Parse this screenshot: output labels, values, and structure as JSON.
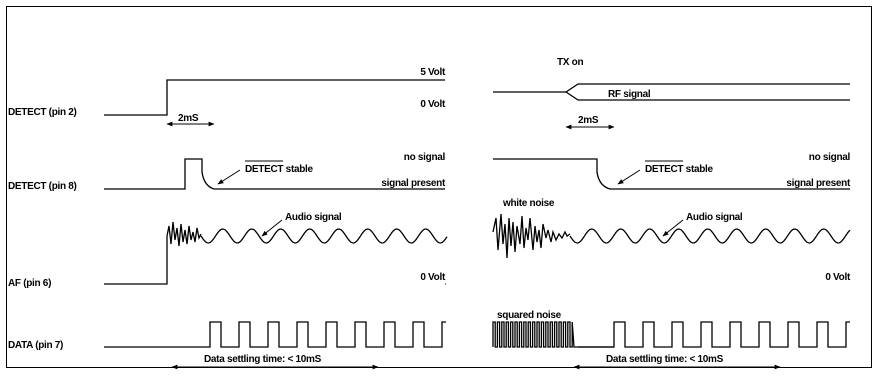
{
  "signals": {
    "detect1": "DETECT (pin 2)",
    "detect2": "DETECT (pin 8)",
    "af": "AF (pin 6)",
    "data": "DATA (pin 7)"
  },
  "levels": {
    "five_volt": "5 Volt",
    "zero_volt": "0 Volt",
    "no_signal": "no signal",
    "signal_present": "signal present"
  },
  "annotations": {
    "t_2ms": "2mS",
    "detect_stable": "DETECT stable",
    "audio_signal": "Audio signal",
    "data_settling": "Data settling time: < 10mS",
    "tx_on": "TX on",
    "rf_signal": "RF signal",
    "white_noise": "white noise",
    "squared_noise": "squared noise"
  }
}
